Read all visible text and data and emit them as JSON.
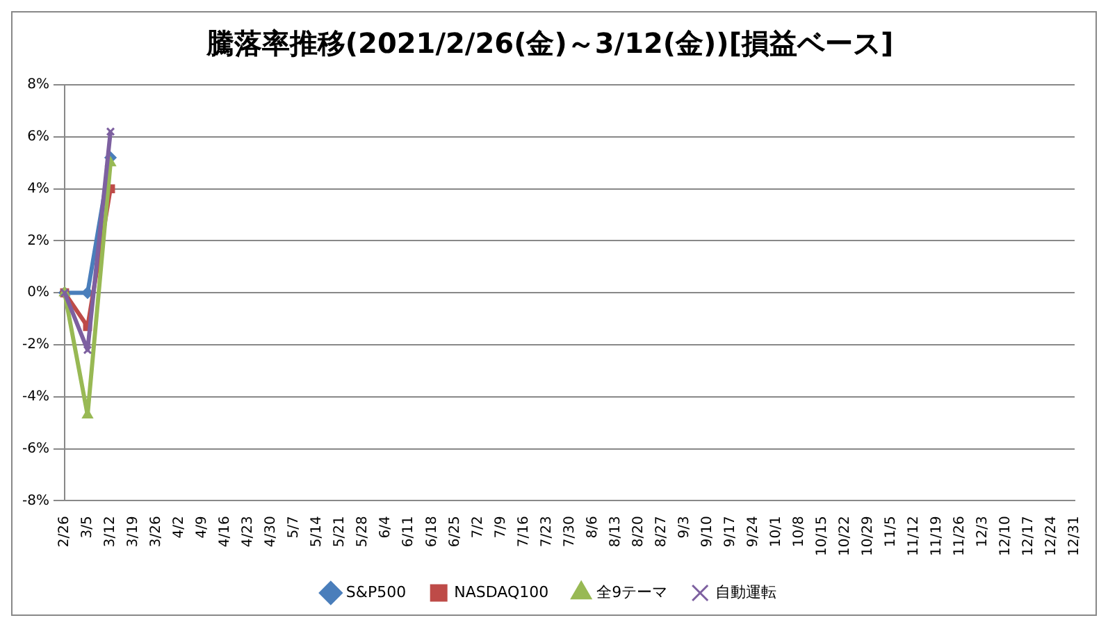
{
  "chart_data": {
    "type": "line",
    "title": "騰落率推移(2021/2/26(金)～3/12(金))[損益ベース]",
    "categories": [
      "2/26",
      "3/5",
      "3/12",
      "3/19",
      "3/26",
      "4/2",
      "4/9",
      "4/16",
      "4/23",
      "4/30",
      "5/7",
      "5/14",
      "5/21",
      "5/28",
      "6/4",
      "6/11",
      "6/18",
      "6/25",
      "7/2",
      "7/9",
      "7/16",
      "7/23",
      "7/30",
      "8/6",
      "8/13",
      "8/20",
      "8/27",
      "9/3",
      "9/10",
      "9/17",
      "9/24",
      "10/1",
      "10/8",
      "10/15",
      "10/22",
      "10/29",
      "11/5",
      "11/12",
      "11/19",
      "11/26",
      "12/3",
      "12/10",
      "12/17",
      "12/24",
      "12/31"
    ],
    "series": [
      {
        "name": "S&P500",
        "color": "#4a7ebb",
        "marker": "diamond",
        "values": [
          0,
          0,
          5.2,
          null,
          null,
          null,
          null,
          null,
          null,
          null,
          null,
          null,
          null,
          null,
          null,
          null,
          null,
          null,
          null,
          null,
          null,
          null,
          null,
          null,
          null,
          null,
          null,
          null,
          null,
          null,
          null,
          null,
          null,
          null,
          null,
          null,
          null,
          null,
          null,
          null,
          null,
          null,
          null,
          null,
          null
        ]
      },
      {
        "name": "NASDAQ100",
        "color": "#be4b48",
        "marker": "square",
        "values": [
          0,
          -1.3,
          4.0,
          null,
          null,
          null,
          null,
          null,
          null,
          null,
          null,
          null,
          null,
          null,
          null,
          null,
          null,
          null,
          null,
          null,
          null,
          null,
          null,
          null,
          null,
          null,
          null,
          null,
          null,
          null,
          null,
          null,
          null,
          null,
          null,
          null,
          null,
          null,
          null,
          null,
          null,
          null,
          null,
          null,
          null
        ]
      },
      {
        "name": "全9テーマ",
        "color": "#98b954",
        "marker": "triangle",
        "values": [
          0,
          -4.7,
          5.0,
          null,
          null,
          null,
          null,
          null,
          null,
          null,
          null,
          null,
          null,
          null,
          null,
          null,
          null,
          null,
          null,
          null,
          null,
          null,
          null,
          null,
          null,
          null,
          null,
          null,
          null,
          null,
          null,
          null,
          null,
          null,
          null,
          null,
          null,
          null,
          null,
          null,
          null,
          null,
          null,
          null,
          null
        ]
      },
      {
        "name": "自動運転",
        "color": "#7d60a0",
        "marker": "cross",
        "values": [
          0,
          -2.2,
          6.2,
          null,
          null,
          null,
          null,
          null,
          null,
          null,
          null,
          null,
          null,
          null,
          null,
          null,
          null,
          null,
          null,
          null,
          null,
          null,
          null,
          null,
          null,
          null,
          null,
          null,
          null,
          null,
          null,
          null,
          null,
          null,
          null,
          null,
          null,
          null,
          null,
          null,
          null,
          null,
          null,
          null,
          null
        ]
      }
    ],
    "ylim": [
      -8,
      8
    ],
    "yticks": [
      {
        "value": -8,
        "label": "-8%"
      },
      {
        "value": -6,
        "label": "-6%"
      },
      {
        "value": -4,
        "label": "-4%"
      },
      {
        "value": -2,
        "label": "-2%"
      },
      {
        "value": 0,
        "label": "0%"
      },
      {
        "value": 2,
        "label": "2%"
      },
      {
        "value": 4,
        "label": "4%"
      },
      {
        "value": 6,
        "label": "6%"
      },
      {
        "value": 8,
        "label": "8%"
      }
    ],
    "grid": "y",
    "legend": "bottom"
  }
}
